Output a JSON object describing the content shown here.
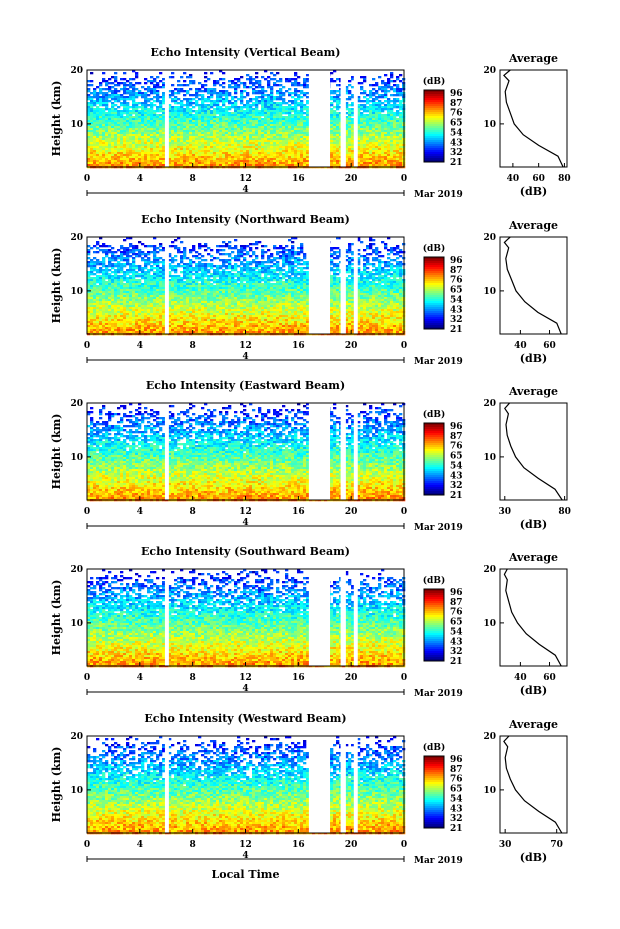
{
  "figure": {
    "xlabel": "Local Time",
    "date_label": "Mar 2019",
    "day_label": "4"
  },
  "chart_data": [
    {
      "type": "heatmap",
      "title": "Echo Intensity (Vertical Beam)",
      "ylabel": "Height (km)",
      "xlim": [
        0,
        24
      ],
      "ylim": [
        2,
        20
      ],
      "x_ticks": [
        "0",
        "4",
        "8",
        "12",
        "16",
        "20",
        "0"
      ],
      "y_ticks": [
        "10",
        "20"
      ],
      "data_gaps_hours": [
        [
          5.9,
          6.2
        ],
        [
          16.8,
          18.4
        ],
        [
          19.2,
          19.6
        ],
        [
          20.2,
          20.5
        ]
      ],
      "colorbar": {
        "unit": "(dB)",
        "labels": [
          "96",
          "87",
          "76",
          "65",
          "54",
          "43",
          "32",
          "21"
        ]
      },
      "profile": {
        "title": "Average",
        "xlabel": "(dB)",
        "x_ticks": [
          "40",
          "60",
          "80"
        ],
        "xlim": [
          30,
          82
        ],
        "y": [
          2,
          4,
          6,
          8,
          10,
          12,
          14,
          16,
          18,
          19,
          20
        ],
        "x": [
          79,
          75,
          60,
          48,
          41,
          38,
          35,
          34,
          37,
          33,
          38
        ]
      }
    },
    {
      "type": "heatmap",
      "title": "Echo Intensity (Northward Beam)",
      "ylabel": "Height (km)",
      "xlim": [
        0,
        24
      ],
      "ylim": [
        2,
        20
      ],
      "x_ticks": [
        "0",
        "4",
        "8",
        "12",
        "16",
        "20",
        "0"
      ],
      "y_ticks": [
        "10",
        "20"
      ],
      "data_gaps_hours": [
        [
          5.9,
          6.2
        ],
        [
          16.8,
          18.4
        ],
        [
          19.2,
          19.6
        ],
        [
          20.2,
          20.5
        ]
      ],
      "colorbar": {
        "unit": "(dB)",
        "labels": [
          "96",
          "87",
          "76",
          "65",
          "54",
          "43",
          "32",
          "21"
        ]
      },
      "profile": {
        "title": "Average",
        "xlabel": "(dB)",
        "x_ticks": [
          "40",
          "60"
        ],
        "xlim": [
          26,
          72
        ],
        "y": [
          2,
          4,
          6,
          8,
          10,
          12,
          14,
          16,
          18,
          19,
          20
        ],
        "x": [
          68,
          65,
          52,
          43,
          37,
          34,
          31,
          30,
          32,
          29,
          33
        ]
      }
    },
    {
      "type": "heatmap",
      "title": "Echo Intensity (Eastward Beam)",
      "ylabel": "Height (km)",
      "xlim": [
        0,
        24
      ],
      "ylim": [
        2,
        20
      ],
      "x_ticks": [
        "0",
        "4",
        "8",
        "12",
        "16",
        "20",
        "0"
      ],
      "y_ticks": [
        "10",
        "20"
      ],
      "data_gaps_hours": [
        [
          5.9,
          6.2
        ],
        [
          16.8,
          18.4
        ],
        [
          19.2,
          19.6
        ],
        [
          20.2,
          20.5
        ]
      ],
      "colorbar": {
        "unit": "(dB)",
        "labels": [
          "96",
          "87",
          "76",
          "65",
          "54",
          "43",
          "32",
          "21"
        ]
      },
      "profile": {
        "title": "Average",
        "xlabel": "(dB)",
        "x_ticks": [
          "30",
          "80"
        ],
        "xlim": [
          26,
          82
        ],
        "y": [
          2,
          4,
          6,
          8,
          10,
          12,
          14,
          16,
          18,
          19,
          20
        ],
        "x": [
          78,
          72,
          58,
          46,
          39,
          35,
          32,
          31,
          33,
          30,
          34
        ]
      }
    },
    {
      "type": "heatmap",
      "title": "Echo Intensity (Southward Beam)",
      "ylabel": "Height (km)",
      "xlim": [
        0,
        24
      ],
      "ylim": [
        2,
        20
      ],
      "x_ticks": [
        "0",
        "4",
        "8",
        "12",
        "16",
        "20",
        "0"
      ],
      "y_ticks": [
        "10",
        "20"
      ],
      "data_gaps_hours": [
        [
          5.9,
          6.2
        ],
        [
          16.8,
          18.4
        ],
        [
          19.2,
          19.6
        ],
        [
          20.2,
          20.5
        ]
      ],
      "colorbar": {
        "unit": "(dB)",
        "labels": [
          "96",
          "87",
          "76",
          "65",
          "54",
          "43",
          "32",
          "21"
        ]
      },
      "profile": {
        "title": "Average",
        "xlabel": "(dB)",
        "x_ticks": [
          "40",
          "60"
        ],
        "xlim": [
          26,
          72
        ],
        "y": [
          2,
          4,
          6,
          8,
          10,
          12,
          14,
          16,
          18,
          19,
          20
        ],
        "x": [
          68,
          64,
          53,
          44,
          38,
          34,
          32,
          30,
          31,
          29,
          31
        ]
      }
    },
    {
      "type": "heatmap",
      "title": "Echo Intensity (Westward Beam)",
      "ylabel": "Height (km)",
      "xlim": [
        0,
        24
      ],
      "ylim": [
        2,
        20
      ],
      "x_ticks": [
        "0",
        "4",
        "8",
        "12",
        "16",
        "20",
        "0"
      ],
      "y_ticks": [
        "10",
        "20"
      ],
      "data_gaps_hours": [
        [
          5.9,
          6.2
        ],
        [
          16.8,
          18.4
        ],
        [
          19.2,
          19.6
        ],
        [
          20.2,
          20.5
        ]
      ],
      "colorbar": {
        "unit": "(dB)",
        "labels": [
          "96",
          "87",
          "76",
          "65",
          "54",
          "43",
          "32",
          "21"
        ]
      },
      "profile": {
        "title": "Average",
        "xlabel": "(dB)",
        "x_ticks": [
          "30",
          "70"
        ],
        "xlim": [
          26,
          78
        ],
        "y": [
          2,
          4,
          6,
          8,
          10,
          12,
          14,
          16,
          18,
          19,
          20
        ],
        "x": [
          74,
          69,
          56,
          45,
          38,
          34,
          31,
          30,
          32,
          29,
          33
        ]
      }
    }
  ]
}
